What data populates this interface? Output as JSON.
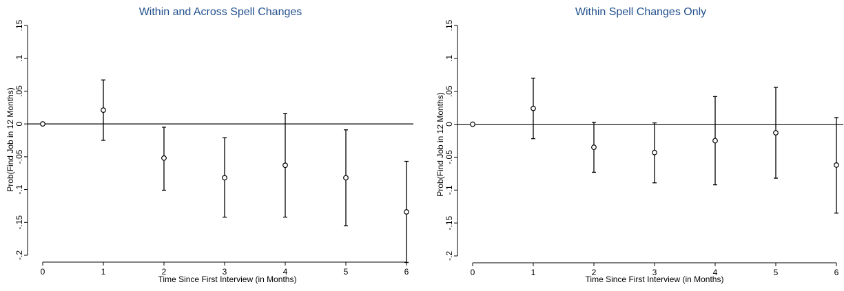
{
  "chart_data": [
    {
      "type": "scatter",
      "title": "Within and Across Spell Changes",
      "xlabel": "Time Since First Interview (in Months)",
      "ylabel": "Prob(Find Job in 12 Months)",
      "xlim": [
        0,
        6
      ],
      "ylim": [
        -0.2,
        0.15
      ],
      "xticks": [
        0,
        1,
        2,
        3,
        4,
        5,
        6
      ],
      "xtick_labels": [
        "0",
        "1",
        "2",
        "3",
        "4",
        "5",
        "6"
      ],
      "yticks": [
        -0.2,
        -0.15,
        -0.1,
        -0.05,
        0,
        0.05,
        0.1,
        0.15
      ],
      "ytick_labels": [
        "-.2",
        "-.15",
        "-.1",
        "-.05",
        "0",
        ".05",
        ".1",
        ".15"
      ],
      "reference_line_y": 0,
      "points": [
        {
          "x": 0,
          "y": 0.0,
          "lo": 0.0,
          "hi": 0.0
        },
        {
          "x": 1,
          "y": 0.021,
          "lo": -0.025,
          "hi": 0.067
        },
        {
          "x": 2,
          "y": -0.052,
          "lo": -0.101,
          "hi": -0.005
        },
        {
          "x": 3,
          "y": -0.082,
          "lo": -0.142,
          "hi": -0.021
        },
        {
          "x": 4,
          "y": -0.063,
          "lo": -0.142,
          "hi": 0.016
        },
        {
          "x": 5,
          "y": -0.082,
          "lo": -0.155,
          "hi": -0.009
        },
        {
          "x": 6,
          "y": -0.134,
          "lo": -0.211,
          "hi": -0.057
        }
      ]
    },
    {
      "type": "scatter",
      "title": "Within Spell Changes Only",
      "xlabel": "Time Since First Interview (in Months)",
      "ylabel": "Prob(Find Job in 12 Months)",
      "xlim": [
        0,
        6
      ],
      "ylim": [
        -0.2,
        0.15
      ],
      "xticks": [
        0,
        1,
        2,
        3,
        4,
        5,
        6
      ],
      "xtick_labels": [
        "0",
        "1",
        "2",
        "3",
        "4",
        "5",
        "6"
      ],
      "yticks": [
        -0.2,
        -0.15,
        -0.1,
        -0.05,
        0,
        0.05,
        0.1,
        0.15
      ],
      "ytick_labels": [
        "-.2",
        "-.15",
        "-.1",
        "-.05",
        "0",
        ".05",
        ".1",
        ".15"
      ],
      "reference_line_y": 0,
      "points": [
        {
          "x": 0,
          "y": 0.0,
          "lo": 0.0,
          "hi": 0.0
        },
        {
          "x": 1,
          "y": 0.024,
          "lo": -0.022,
          "hi": 0.07
        },
        {
          "x": 2,
          "y": -0.035,
          "lo": -0.073,
          "hi": 0.003
        },
        {
          "x": 3,
          "y": -0.043,
          "lo": -0.089,
          "hi": 0.002
        },
        {
          "x": 4,
          "y": -0.025,
          "lo": -0.092,
          "hi": 0.042
        },
        {
          "x": 5,
          "y": -0.013,
          "lo": -0.082,
          "hi": 0.056
        },
        {
          "x": 6,
          "y": -0.062,
          "lo": -0.135,
          "hi": 0.01
        }
      ]
    }
  ]
}
